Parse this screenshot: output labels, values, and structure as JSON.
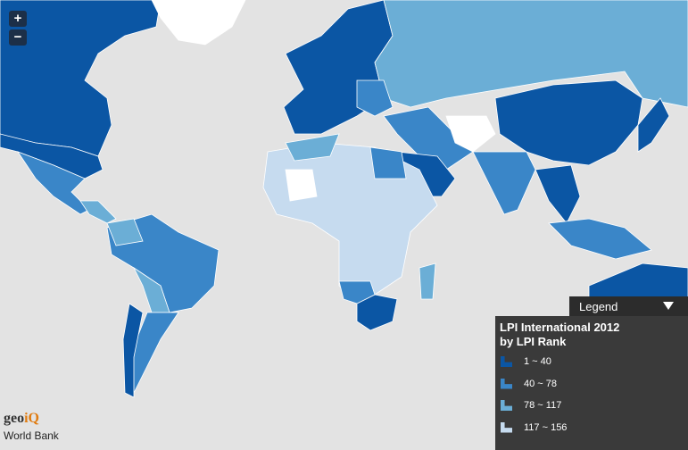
{
  "controls": {
    "zoom_in": "+",
    "zoom_out": "−"
  },
  "legend": {
    "header": "Legend",
    "title": [
      "LPI International 2012",
      "by LPI Rank"
    ],
    "items": [
      {
        "label": "1 ~ 40",
        "color": "#0b56a4"
      },
      {
        "label": "40 ~ 78",
        "color": "#3a86c8"
      },
      {
        "label": "78 ~ 117",
        "color": "#6baed6"
      },
      {
        "label": "117 ~ 156",
        "color": "#c6dbef"
      }
    ]
  },
  "attribution": {
    "logo": [
      "geo",
      "iQ"
    ],
    "source": "World Bank"
  }
}
